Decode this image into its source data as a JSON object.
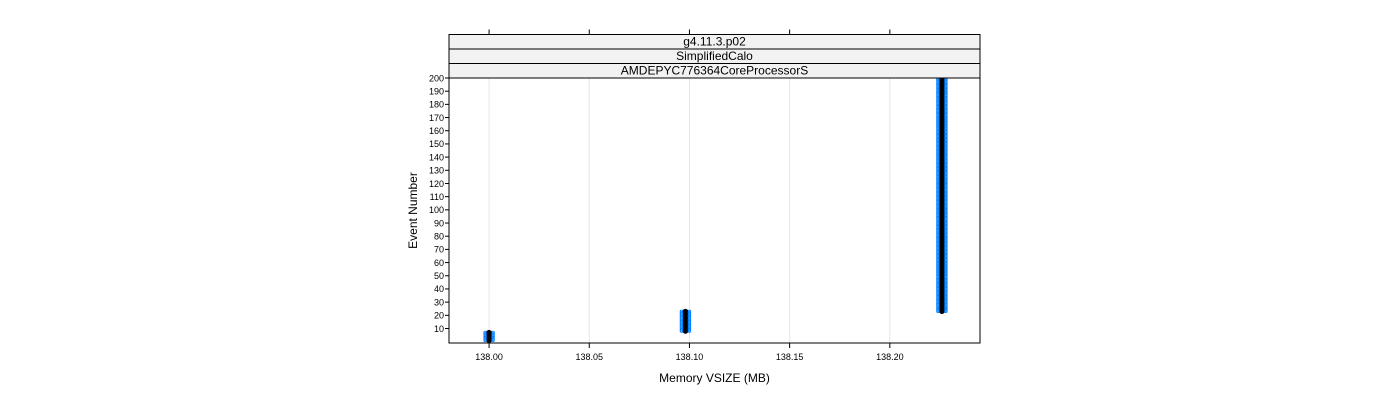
{
  "chart_data": {
    "type": "scatter",
    "strips": [
      "g4.11.3.p02",
      "SimplifiedCalo",
      "AMDEPYC776364CoreProcessorS"
    ],
    "xlabel": "Memory VSIZE (MB)",
    "ylabel": "Event Number",
    "xlim": [
      137.98,
      138.245
    ],
    "ylim": [
      -1,
      200
    ],
    "x_ticks": [
      138.0,
      138.05,
      138.1,
      138.15,
      138.2
    ],
    "x_tick_labels": [
      "138.00",
      "138.05",
      "138.10",
      "138.15",
      "138.20"
    ],
    "y_ticks": [
      10,
      20,
      30,
      40,
      50,
      60,
      70,
      80,
      90,
      100,
      110,
      120,
      130,
      140,
      150,
      160,
      170,
      180,
      190,
      200
    ],
    "y_tick_labels": [
      "10",
      "20",
      "30",
      "40",
      "50",
      "60",
      "70",
      "80",
      "90",
      "100",
      "110",
      "120",
      "130",
      "140",
      "150",
      "160",
      "170",
      "180",
      "190",
      "200"
    ],
    "grid": "vertical",
    "colors": {
      "points": "#0080ff",
      "median": "#000000",
      "strip_bg": "#f2f2f2"
    },
    "clusters": [
      {
        "x": 138.0,
        "y_min": 1,
        "y_max": 7
      },
      {
        "x": 138.098,
        "y_min": 8,
        "y_max": 23
      },
      {
        "x": 138.226,
        "y_min": 23,
        "y_max": 200
      }
    ]
  }
}
